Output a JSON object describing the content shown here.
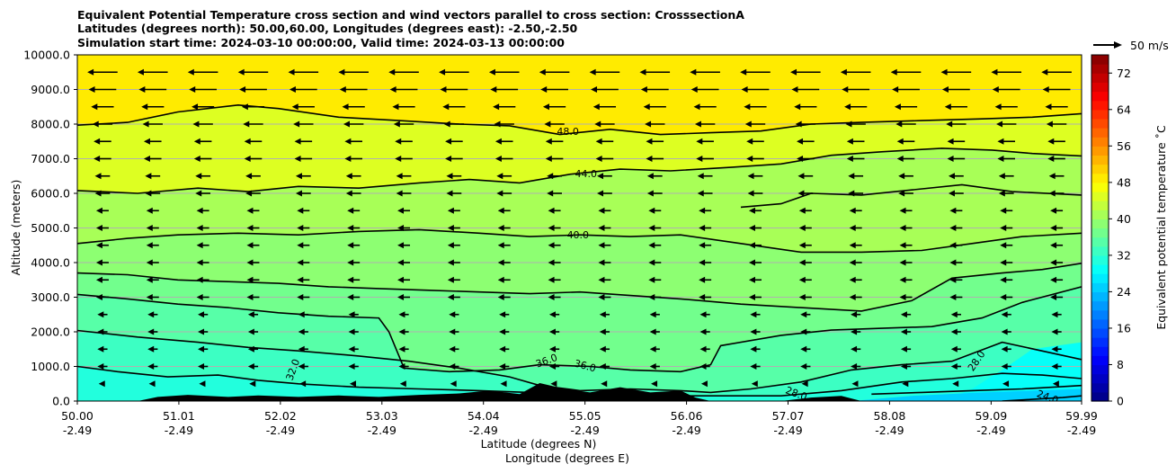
{
  "chart_data": {
    "type": "heatmap",
    "title": [
      "Equivalent Potential Temperature cross section and wind vectors parallel to cross section: CrosssectionA",
      "Latitudes (degrees north): 50.00,60.00, Longitudes (degrees east): -2.50,-2.50",
      "Simulation start time: 2024-03-10 00:00:00, Valid time: 2024-03-13 00:00:00"
    ],
    "xlabel": [
      "Latitude (degrees N)",
      "Longitude (degrees E)"
    ],
    "ylabel": "Altitude (meters)",
    "xlim": [
      50.0,
      59.99
    ],
    "ylim": [
      0,
      10000
    ],
    "x_ticks": [
      {
        "lat": "50.00",
        "lon": "-2.49",
        "value": 50.0
      },
      {
        "lat": "51.01",
        "lon": "-2.49",
        "value": 51.01
      },
      {
        "lat": "52.02",
        "lon": "-2.49",
        "value": 52.02
      },
      {
        "lat": "53.03",
        "lon": "-2.49",
        "value": 53.03
      },
      {
        "lat": "54.04",
        "lon": "-2.49",
        "value": 54.04
      },
      {
        "lat": "55.05",
        "lon": "-2.49",
        "value": 55.05
      },
      {
        "lat": "56.06",
        "lon": "-2.49",
        "value": 56.06
      },
      {
        "lat": "57.07",
        "lon": "-2.49",
        "value": 57.07
      },
      {
        "lat": "58.08",
        "lon": "-2.49",
        "value": 58.08
      },
      {
        "lat": "59.09",
        "lon": "-2.49",
        "value": 59.09
      },
      {
        "lat": "59.99",
        "lon": "-2.49",
        "value": 59.99
      }
    ],
    "y_ticks": [
      {
        "label": "0.0",
        "value": 0
      },
      {
        "label": "1000.0",
        "value": 1000
      },
      {
        "label": "2000.0",
        "value": 2000
      },
      {
        "label": "3000.0",
        "value": 3000
      },
      {
        "label": "4000.0",
        "value": 4000
      },
      {
        "label": "5000.0",
        "value": 5000
      },
      {
        "label": "6000.0",
        "value": 6000
      },
      {
        "label": "7000.0",
        "value": 7000
      },
      {
        "label": "8000.0",
        "value": 8000
      },
      {
        "label": "9000.0",
        "value": 9000
      },
      {
        "label": "10000.0",
        "value": 10000
      }
    ],
    "grid": "horizontal",
    "colorbar": {
      "label": "Equivalent potential temperature $^\\circ$C",
      "label_display": "Equivalent potential temperature ˚C",
      "min": 0,
      "max": 76,
      "step": 2,
      "ticks": [
        0,
        8,
        16,
        24,
        32,
        40,
        48,
        56,
        64,
        72
      ],
      "colormap": "jet"
    },
    "quiver_key": {
      "label": "50 m/s",
      "magnitude": 50
    },
    "contour_levels": [
      {
        "value": 48,
        "label": "48.0",
        "points": [
          [
            50.0,
            7970
          ],
          [
            50.5,
            8050
          ],
          [
            51.0,
            8350
          ],
          [
            51.6,
            8550
          ],
          [
            52.0,
            8450
          ],
          [
            52.6,
            8200
          ],
          [
            53.2,
            8100
          ],
          [
            53.8,
            8000
          ],
          [
            54.3,
            7950
          ],
          [
            54.8,
            7700
          ],
          [
            55.3,
            7850
          ],
          [
            55.8,
            7700
          ],
          [
            56.3,
            7750
          ],
          [
            56.8,
            7800
          ],
          [
            57.3,
            8000
          ],
          [
            57.8,
            8050
          ],
          [
            58.4,
            8100
          ],
          [
            59.0,
            8150
          ],
          [
            59.5,
            8200
          ],
          [
            59.99,
            8300
          ]
        ]
      },
      {
        "value": 44,
        "label": "44.0",
        "points": [
          [
            50.0,
            6080
          ],
          [
            50.6,
            6000
          ],
          [
            51.2,
            6150
          ],
          [
            51.7,
            6050
          ],
          [
            52.2,
            6200
          ],
          [
            52.8,
            6150
          ],
          [
            53.4,
            6300
          ],
          [
            53.9,
            6400
          ],
          [
            54.4,
            6300
          ],
          [
            54.9,
            6550
          ],
          [
            55.4,
            6700
          ],
          [
            55.9,
            6650
          ],
          [
            56.5,
            6750
          ],
          [
            57.0,
            6850
          ],
          [
            57.5,
            7100
          ],
          [
            58.0,
            7200
          ],
          [
            58.6,
            7300
          ],
          [
            59.1,
            7250
          ],
          [
            59.5,
            7150
          ],
          [
            59.99,
            7080
          ]
        ]
      },
      {
        "value": 42,
        "label": "",
        "points": [
          [
            56.6,
            5600
          ],
          [
            57.0,
            5700
          ],
          [
            57.3,
            6000
          ],
          [
            57.8,
            5950
          ],
          [
            58.3,
            6100
          ],
          [
            58.8,
            6250
          ],
          [
            59.3,
            6050
          ],
          [
            59.99,
            5950
          ]
        ]
      },
      {
        "value": 40,
        "label": "40.0",
        "points": [
          [
            50.0,
            4550
          ],
          [
            50.5,
            4700
          ],
          [
            51.0,
            4800
          ],
          [
            51.6,
            4850
          ],
          [
            52.2,
            4800
          ],
          [
            52.8,
            4900
          ],
          [
            53.4,
            4950
          ],
          [
            54.0,
            4850
          ],
          [
            54.5,
            4750
          ],
          [
            55.0,
            4800
          ],
          [
            55.5,
            4750
          ],
          [
            56.0,
            4800
          ],
          [
            56.6,
            4550
          ],
          [
            57.2,
            4300
          ],
          [
            57.8,
            4300
          ],
          [
            58.4,
            4350
          ],
          [
            58.9,
            4550
          ],
          [
            59.4,
            4750
          ],
          [
            59.99,
            4850
          ]
        ]
      },
      {
        "value": 38,
        "label": "",
        "points": [
          [
            50.0,
            3700
          ],
          [
            50.5,
            3650
          ],
          [
            51.0,
            3500
          ],
          [
            51.5,
            3450
          ],
          [
            52.0,
            3400
          ],
          [
            52.5,
            3300
          ],
          [
            53.0,
            3250
          ],
          [
            53.5,
            3200
          ],
          [
            54.0,
            3150
          ],
          [
            54.5,
            3100
          ],
          [
            55.0,
            3150
          ],
          [
            55.5,
            3050
          ],
          [
            56.0,
            2950
          ],
          [
            56.6,
            2800
          ],
          [
            57.2,
            2700
          ],
          [
            57.8,
            2600
          ],
          [
            58.3,
            2900
          ],
          [
            58.7,
            3550
          ],
          [
            59.2,
            3700
          ],
          [
            59.6,
            3800
          ],
          [
            59.99,
            3980
          ]
        ]
      },
      {
        "value": 36,
        "label": "36.0",
        "points": [
          [
            50.0,
            3080
          ],
          [
            50.5,
            2950
          ],
          [
            51.0,
            2800
          ],
          [
            51.5,
            2700
          ],
          [
            52.0,
            2550
          ],
          [
            52.5,
            2450
          ],
          [
            53.0,
            2400
          ],
          [
            53.1,
            2000
          ],
          [
            53.25,
            950
          ],
          [
            53.7,
            850
          ],
          [
            54.2,
            900
          ],
          [
            54.6,
            1050
          ],
          [
            55.1,
            1000
          ],
          [
            55.5,
            900
          ],
          [
            56.0,
            850
          ],
          [
            56.3,
            1050
          ],
          [
            56.4,
            1600
          ],
          [
            57.0,
            1900
          ],
          [
            57.5,
            2050
          ],
          [
            58.0,
            2100
          ],
          [
            58.5,
            2150
          ],
          [
            59.0,
            2400
          ],
          [
            59.4,
            2850
          ],
          [
            59.99,
            3300
          ]
        ]
      },
      {
        "value": 34,
        "label": "",
        "points": [
          [
            50.0,
            2040
          ],
          [
            50.6,
            1850
          ],
          [
            51.2,
            1700
          ],
          [
            51.7,
            1550
          ],
          [
            52.2,
            1450
          ],
          [
            52.8,
            1300
          ],
          [
            53.3,
            1150
          ],
          [
            53.8,
            950
          ],
          [
            54.3,
            700
          ],
          [
            54.6,
            450
          ],
          [
            55.0,
            300
          ],
          [
            55.5,
            350
          ],
          [
            56.0,
            300
          ],
          [
            56.3,
            250
          ],
          [
            56.7,
            350
          ],
          [
            57.2,
            550
          ],
          [
            57.7,
            900
          ],
          [
            58.2,
            1050
          ],
          [
            58.7,
            1150
          ],
          [
            59.2,
            1700
          ],
          [
            59.99,
            1200
          ]
        ]
      },
      {
        "value": 32,
        "label": "32.0",
        "points": [
          [
            50.0,
            1000
          ],
          [
            50.4,
            850
          ],
          [
            50.9,
            700
          ],
          [
            51.4,
            750
          ],
          [
            51.8,
            600
          ],
          [
            52.2,
            500
          ],
          [
            52.8,
            400
          ],
          [
            53.4,
            350
          ],
          [
            54.0,
            300
          ],
          [
            54.5,
            250
          ],
          [
            55.0,
            200
          ],
          [
            55.6,
            150
          ],
          [
            56.3,
            150
          ],
          [
            57.0,
            150
          ],
          [
            57.6,
            300
          ],
          [
            58.2,
            550
          ],
          [
            58.7,
            650
          ],
          [
            59.2,
            800
          ],
          [
            59.6,
            750
          ],
          [
            59.99,
            650
          ]
        ]
      },
      {
        "value": 28,
        "label": "28.0",
        "points": [
          [
            57.9,
            200
          ],
          [
            58.4,
            250
          ],
          [
            58.9,
            300
          ],
          [
            59.4,
            350
          ],
          [
            59.99,
            450
          ]
        ]
      },
      {
        "value": 24,
        "label": "24.0",
        "points": [
          [
            59.2,
            0
          ],
          [
            59.5,
            50
          ],
          [
            59.8,
            100
          ],
          [
            59.99,
            150
          ]
        ]
      }
    ],
    "contour_labels": [
      {
        "text": "48.0",
        "x": 54.88,
        "y": 7760,
        "angle": 0
      },
      {
        "text": "44.0",
        "x": 55.06,
        "y": 6550,
        "angle": 0
      },
      {
        "text": "40.0",
        "x": 54.98,
        "y": 4780,
        "angle": 0
      },
      {
        "text": "36.0",
        "x": 54.67,
        "y": 1150,
        "angle": 20
      },
      {
        "text": "36.0",
        "x": 55.05,
        "y": 1000,
        "angle": -15
      },
      {
        "text": "32.0",
        "x": 52.15,
        "y": 900,
        "angle": 70
      },
      {
        "text": "28.0",
        "x": 57.15,
        "y": 200,
        "angle": -20
      },
      {
        "text": "28.0",
        "x": 58.95,
        "y": 1150,
        "angle": 55
      },
      {
        "text": "24.0",
        "x": 59.65,
        "y": 100,
        "angle": -20
      }
    ],
    "wind": {
      "note": "vectors parallel to cross section, pointing toward decreasing latitude",
      "rows": [
        {
          "alt": 9500,
          "u": -12
        },
        {
          "alt": 9000,
          "u": -11
        },
        {
          "alt": 8500,
          "u": -9
        },
        {
          "alt": 8000,
          "u": -8
        },
        {
          "alt": 7500,
          "u": -7
        },
        {
          "alt": 7000,
          "u": -7
        },
        {
          "alt": 6500,
          "u": -6
        },
        {
          "alt": 6000,
          "u": -6
        },
        {
          "alt": 5500,
          "u": -5
        },
        {
          "alt": 5000,
          "u": -5
        },
        {
          "alt": 4500,
          "u": -5
        },
        {
          "alt": 4000,
          "u": -5
        },
        {
          "alt": 3500,
          "u": -5
        },
        {
          "alt": 3000,
          "u": -5
        },
        {
          "alt": 2500,
          "u": -4
        },
        {
          "alt": 2000,
          "u": -4
        },
        {
          "alt": 1500,
          "u": -4
        },
        {
          "alt": 1000,
          "u": -4
        },
        {
          "alt": 500,
          "u": -3
        }
      ]
    },
    "terrain": [
      [
        50.0,
        0
      ],
      [
        50.6,
        0
      ],
      [
        50.8,
        120
      ],
      [
        51.1,
        180
      ],
      [
        51.5,
        120
      ],
      [
        51.8,
        160
      ],
      [
        52.2,
        120
      ],
      [
        52.6,
        160
      ],
      [
        53.0,
        120
      ],
      [
        53.4,
        180
      ],
      [
        53.8,
        220
      ],
      [
        54.1,
        300
      ],
      [
        54.4,
        200
      ],
      [
        54.6,
        520
      ],
      [
        54.85,
        350
      ],
      [
        55.1,
        250
      ],
      [
        55.4,
        400
      ],
      [
        55.7,
        250
      ],
      [
        56.0,
        300
      ],
      [
        56.15,
        100
      ],
      [
        56.3,
        0
      ],
      [
        57.0,
        0
      ],
      [
        57.3,
        100
      ],
      [
        57.6,
        150
      ],
      [
        57.8,
        0
      ],
      [
        59.99,
        0
      ]
    ]
  }
}
